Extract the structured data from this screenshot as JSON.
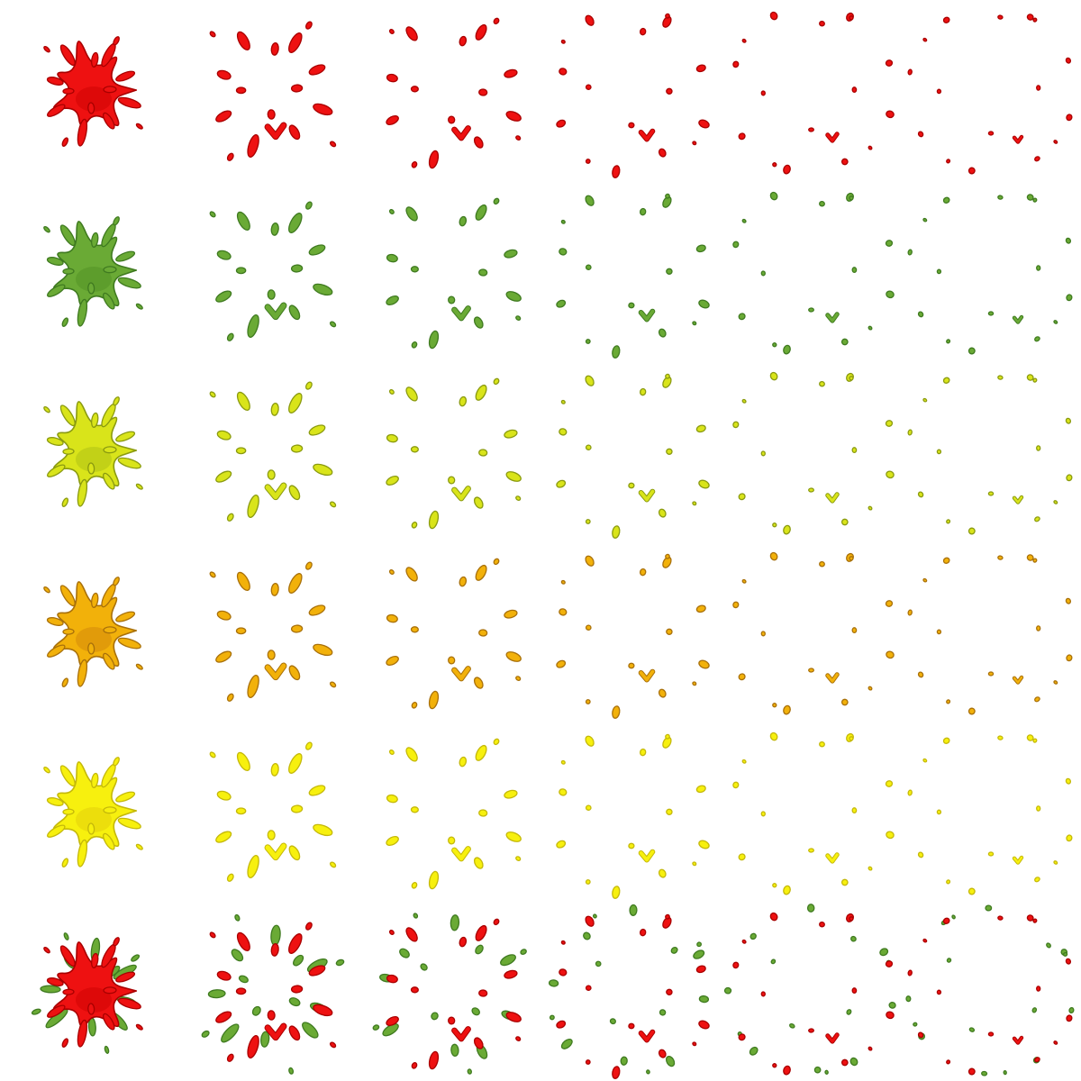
{
  "sheet": {
    "title": "",
    "frames_per_row": 6,
    "frame_count_total": 36,
    "background": "#ffffff"
  },
  "rows": [
    {
      "variant": "red-splatter",
      "fill": "#ee1111",
      "shade": "#d80808",
      "outline": "#a80000",
      "frames": [
        1,
        2,
        3,
        4,
        5,
        6
      ]
    },
    {
      "variant": "green-splatter",
      "fill": "#6aaa35",
      "shade": "#5a9a2a",
      "outline": "#3f7a20",
      "frames": [
        1,
        2,
        3,
        4,
        5,
        6
      ]
    },
    {
      "variant": "yellow-green-splatter",
      "fill": "#d9e41a",
      "shade": "#bccc16",
      "outline": "#8a9a10",
      "frames": [
        1,
        2,
        3,
        4,
        5,
        6
      ]
    },
    {
      "variant": "orange-splatter",
      "fill": "#f2b10a",
      "shade": "#dc960a",
      "outline": "#a8700a",
      "frames": [
        1,
        2,
        3,
        4,
        5,
        6
      ]
    },
    {
      "variant": "yellow-splatter",
      "fill": "#f7f00e",
      "shade": "#e8da0c",
      "outline": "#c4b80a",
      "frames": [
        1,
        2,
        3,
        4,
        5,
        6
      ]
    },
    {
      "variant": "red-green-mixed-splatter",
      "fill": "#ee1111",
      "shade": "#d80808",
      "outline": "#a80000",
      "secondary_fill": "#6aaa35",
      "secondary_outline": "#3f7a20",
      "frames": [
        1,
        2,
        3,
        4,
        5,
        6
      ]
    }
  ]
}
